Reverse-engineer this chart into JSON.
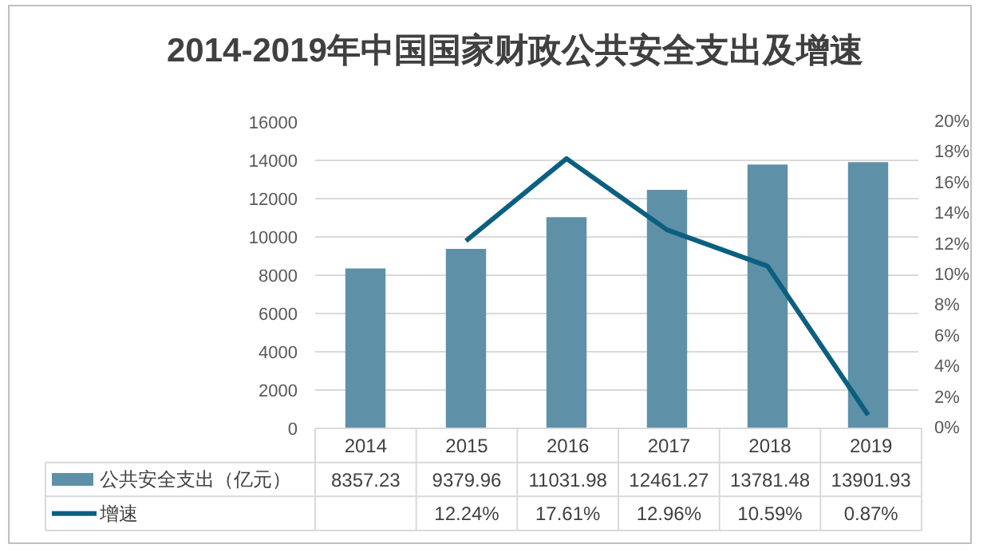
{
  "chart_data": {
    "type": "bar",
    "title": "2014-2019年中国国家财政公共安全支出及增速",
    "categories": [
      "2014",
      "2015",
      "2016",
      "2017",
      "2018",
      "2019"
    ],
    "series": [
      {
        "name": "公共安全支出（亿元）",
        "color": "#5e91a8",
        "values": [
          8357.23,
          9379.96,
          11031.98,
          12461.27,
          13781.48,
          13901.93
        ],
        "value_labels": [
          "8357.23",
          "9379.96",
          "11031.98",
          "12461.27",
          "13781.48",
          "13901.93"
        ]
      },
      {
        "name": "增速",
        "type": "line",
        "axis": "y2",
        "color": "#0b5f7f",
        "values": [
          null,
          12.24,
          17.61,
          12.96,
          10.59,
          0.87
        ],
        "value_labels": [
          null,
          "12.24%",
          "17.61%",
          "12.96%",
          "10.59%",
          "0.87%"
        ]
      }
    ],
    "ylim": [
      0,
      16000
    ],
    "yticks": [
      0,
      2000,
      4000,
      6000,
      8000,
      10000,
      12000,
      14000,
      16000
    ],
    "y2lim": [
      0,
      20
    ],
    "y2ticks": [
      {
        "value": 0,
        "label": "0%"
      },
      {
        "value": 2,
        "label": "2%"
      },
      {
        "value": 4,
        "label": "4%"
      },
      {
        "value": 6,
        "label": "6%"
      },
      {
        "value": 8,
        "label": "8%"
      },
      {
        "value": 10,
        "label": "10%"
      },
      {
        "value": 12,
        "label": "12%"
      },
      {
        "value": 14,
        "label": "14%"
      },
      {
        "value": 16,
        "label": "16%"
      },
      {
        "value": 18,
        "label": "18%"
      },
      {
        "value": 20,
        "label": "20%"
      }
    ],
    "grid": "y",
    "legend": "bottom"
  }
}
